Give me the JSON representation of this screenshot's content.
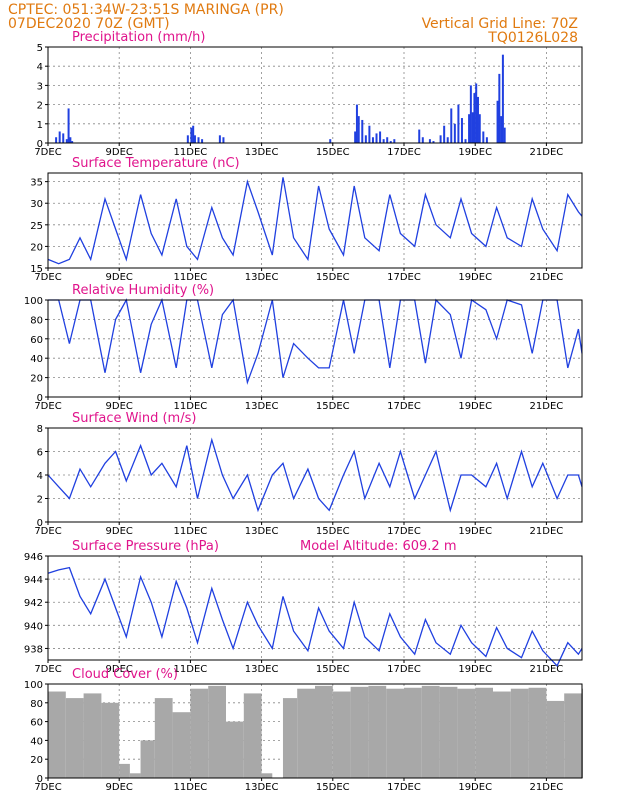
{
  "header": {
    "line1": "CPTEC:   051:34W-23:51S  MARINGA (PR)",
    "line2": "07DEC2020 70Z (GMT)",
    "right1": "Vertical Grid Line: 70Z",
    "right2": "TQ0126L028"
  },
  "colors": {
    "line": "#2040e0",
    "cloud": "#a8a8a8",
    "header": "#e07a10",
    "title": "#e0148c"
  },
  "chart_data": [
    {
      "type": "bar",
      "id": "precip",
      "title": "Precipitation (mm/h)",
      "ylim": [
        0,
        5
      ],
      "yticks": [
        0,
        1,
        2,
        3,
        4,
        5
      ],
      "xlim": [
        7,
        22
      ],
      "xticks": [
        7,
        9,
        11,
        13,
        15,
        17,
        19,
        21
      ],
      "xticklabels": [
        "7DEC",
        "9DEC",
        "11DEC",
        "13DEC",
        "15DEC",
        "17DEC",
        "19DEC",
        "21DEC"
      ],
      "grid": true,
      "x": [
        7.2,
        7.3,
        7.4,
        7.5,
        7.55,
        7.6,
        7.65,
        10.9,
        11.0,
        11.05,
        11.1,
        11.2,
        11.3,
        11.8,
        11.9,
        14.9,
        15.6,
        15.65,
        15.7,
        15.8,
        15.9,
        16.0,
        16.1,
        16.2,
        16.3,
        16.4,
        16.5,
        16.6,
        16.7,
        17.4,
        17.5,
        17.7,
        17.8,
        18.0,
        18.1,
        18.2,
        18.3,
        18.4,
        18.5,
        18.6,
        18.7,
        18.8,
        18.85,
        18.9,
        18.95,
        19.0,
        19.05,
        19.1,
        19.2,
        19.3,
        19.6,
        19.65,
        19.7,
        19.75,
        19.8
      ],
      "values": [
        0.3,
        0.6,
        0.5,
        0.2,
        1.8,
        0.3,
        0.1,
        0.4,
        0.8,
        0.9,
        0.4,
        0.3,
        0.2,
        0.4,
        0.3,
        0.2,
        0.6,
        2.0,
        1.4,
        1.2,
        0.4,
        0.9,
        0.3,
        0.5,
        0.6,
        0.2,
        0.3,
        0.1,
        0.2,
        0.7,
        0.3,
        0.2,
        0.1,
        0.4,
        0.9,
        0.3,
        1.8,
        1.0,
        2.0,
        1.3,
        0.2,
        1.5,
        3.0,
        1.6,
        2.6,
        3.1,
        2.4,
        1.5,
        0.6,
        0.3,
        2.2,
        3.6,
        1.4,
        4.6,
        0.8
      ]
    },
    {
      "type": "line",
      "id": "temp",
      "title": "Surface Temperature (nC)",
      "ylim": [
        15,
        37
      ],
      "yticks": [
        15,
        20,
        25,
        30,
        35
      ],
      "xlim": [
        7,
        22
      ],
      "xticks": [
        7,
        9,
        11,
        13,
        15,
        17,
        19,
        21
      ],
      "xticklabels": [
        "7DEC",
        "9DEC",
        "11DEC",
        "13DEC",
        "15DEC",
        "17DEC",
        "19DEC",
        "21DEC"
      ],
      "grid": true,
      "x": [
        7.0,
        7.3,
        7.6,
        7.9,
        8.2,
        8.6,
        8.9,
        9.2,
        9.6,
        9.9,
        10.2,
        10.6,
        10.9,
        11.2,
        11.6,
        11.9,
        12.2,
        12.6,
        12.9,
        13.3,
        13.6,
        13.9,
        14.3,
        14.6,
        14.9,
        15.3,
        15.6,
        15.9,
        16.3,
        16.6,
        16.9,
        17.3,
        17.6,
        17.9,
        18.3,
        18.6,
        18.9,
        19.3,
        19.6,
        19.9,
        20.3,
        20.6,
        20.9,
        21.3,
        21.6,
        21.9,
        22.0
      ],
      "y": [
        17,
        16,
        17,
        22,
        17,
        31,
        24,
        17,
        32,
        23,
        18,
        31,
        20,
        17,
        29,
        22,
        18,
        35,
        28,
        18,
        36,
        22,
        17,
        34,
        24,
        18,
        34,
        22,
        19,
        32,
        23,
        20,
        32,
        25,
        22,
        31,
        23,
        20,
        29,
        22,
        20,
        31,
        24,
        19,
        32,
        28,
        27
      ]
    },
    {
      "type": "line",
      "id": "rh",
      "title": "Relative Humidity (%)",
      "ylim": [
        0,
        100
      ],
      "yticks": [
        0,
        20,
        40,
        60,
        80,
        100
      ],
      "xlim": [
        7,
        22
      ],
      "xticks": [
        7,
        9,
        11,
        13,
        15,
        17,
        19,
        21
      ],
      "xticklabels": [
        "7DEC",
        "9DEC",
        "11DEC",
        "13DEC",
        "15DEC",
        "17DEC",
        "19DEC",
        "21DEC"
      ],
      "grid": true,
      "x": [
        7.0,
        7.3,
        7.6,
        7.9,
        8.2,
        8.6,
        8.9,
        9.2,
        9.6,
        9.9,
        10.2,
        10.6,
        10.9,
        11.2,
        11.6,
        11.9,
        12.2,
        12.6,
        12.9,
        13.3,
        13.6,
        13.9,
        14.3,
        14.6,
        14.9,
        15.3,
        15.6,
        15.9,
        16.3,
        16.6,
        16.9,
        17.3,
        17.6,
        17.9,
        18.3,
        18.6,
        18.9,
        19.3,
        19.6,
        19.9,
        20.3,
        20.6,
        20.9,
        21.3,
        21.6,
        21.9,
        22.0
      ],
      "y": [
        100,
        100,
        55,
        100,
        100,
        25,
        80,
        100,
        25,
        75,
        100,
        30,
        100,
        100,
        30,
        85,
        100,
        15,
        45,
        100,
        20,
        55,
        40,
        30,
        30,
        100,
        45,
        100,
        100,
        30,
        100,
        100,
        35,
        100,
        85,
        40,
        100,
        90,
        60,
        100,
        95,
        45,
        100,
        100,
        30,
        70,
        45
      ]
    },
    {
      "type": "line",
      "id": "wind",
      "title": "Surface Wind (m/s)",
      "ylim": [
        0,
        8
      ],
      "yticks": [
        0,
        2,
        4,
        6,
        8
      ],
      "xlim": [
        7,
        22
      ],
      "xticks": [
        7,
        9,
        11,
        13,
        15,
        17,
        19,
        21
      ],
      "xticklabels": [
        "7DEC",
        "9DEC",
        "11DEC",
        "13DEC",
        "15DEC",
        "17DEC",
        "19DEC",
        "21DEC"
      ],
      "grid": true,
      "x": [
        7.0,
        7.3,
        7.6,
        7.9,
        8.2,
        8.6,
        8.9,
        9.2,
        9.6,
        9.9,
        10.2,
        10.6,
        10.9,
        11.2,
        11.6,
        11.9,
        12.2,
        12.6,
        12.9,
        13.3,
        13.6,
        13.9,
        14.3,
        14.6,
        14.9,
        15.3,
        15.6,
        15.9,
        16.3,
        16.6,
        16.9,
        17.3,
        17.6,
        17.9,
        18.3,
        18.6,
        18.9,
        19.3,
        19.6,
        19.9,
        20.3,
        20.6,
        20.9,
        21.3,
        21.6,
        21.9,
        22.0
      ],
      "y": [
        4,
        3,
        2,
        4.5,
        3,
        5,
        6,
        3.5,
        6.5,
        4,
        5,
        3,
        6.5,
        2,
        7,
        4,
        2,
        4,
        1,
        4,
        5,
        2,
        4.5,
        2,
        1,
        4,
        6,
        2,
        5,
        3,
        6,
        2,
        4,
        6,
        1,
        4,
        4,
        3,
        5,
        2,
        6,
        3,
        5,
        2,
        4,
        4,
        3
      ]
    },
    {
      "type": "line",
      "id": "pres",
      "title": "Surface Pressure (hPa)",
      "annotation": "Model Altitude: 609.2  m",
      "ylim": [
        937,
        946
      ],
      "yticks": [
        938,
        940,
        942,
        944,
        946
      ],
      "xlim": [
        7,
        22
      ],
      "xticks": [
        7,
        9,
        11,
        13,
        15,
        17,
        19,
        21
      ],
      "xticklabels": [
        "7DEC",
        "9DEC",
        "11DEC",
        "13DEC",
        "15DEC",
        "17DEC",
        "19DEC",
        "21DEC"
      ],
      "grid": true,
      "x": [
        7.0,
        7.3,
        7.6,
        7.9,
        8.2,
        8.6,
        8.9,
        9.2,
        9.6,
        9.9,
        10.2,
        10.6,
        10.9,
        11.2,
        11.6,
        11.9,
        12.2,
        12.6,
        12.9,
        13.3,
        13.6,
        13.9,
        14.3,
        14.6,
        14.9,
        15.3,
        15.6,
        15.9,
        16.3,
        16.6,
        16.9,
        17.3,
        17.6,
        17.9,
        18.3,
        18.6,
        18.9,
        19.3,
        19.6,
        19.9,
        20.3,
        20.6,
        20.9,
        21.3,
        21.6,
        21.9,
        22.0
      ],
      "y": [
        944.5,
        944.8,
        945.0,
        942.5,
        941.0,
        944.0,
        941.5,
        939.0,
        944.2,
        942.0,
        939.0,
        943.8,
        941.5,
        938.5,
        943.2,
        940.5,
        938.0,
        942.0,
        940.0,
        938.0,
        942.5,
        939.5,
        937.8,
        941.5,
        939.5,
        938.0,
        942.0,
        939.0,
        937.8,
        941.0,
        939.0,
        937.5,
        940.5,
        938.5,
        937.5,
        940.0,
        938.5,
        937.3,
        939.8,
        938.0,
        937.2,
        939.5,
        937.8,
        936.5,
        938.5,
        937.5,
        938.0
      ]
    },
    {
      "type": "bar",
      "id": "cloud",
      "title": "Cloud Cover (%)",
      "ylim": [
        0,
        100
      ],
      "yticks": [
        0,
        20,
        40,
        60,
        80,
        100
      ],
      "xlim": [
        7,
        22
      ],
      "xticks": [
        7,
        9,
        11,
        13,
        15,
        17,
        19,
        21
      ],
      "xticklabels": [
        "7DEC",
        "9DEC",
        "11DEC",
        "13DEC",
        "15DEC",
        "17DEC",
        "19DEC",
        "21DEC"
      ],
      "grid": true,
      "x": [
        7.0,
        7.5,
        8.0,
        8.5,
        9.0,
        9.3,
        9.6,
        10.0,
        10.5,
        11.0,
        11.5,
        12.0,
        12.5,
        13.0,
        13.3,
        13.6,
        14.0,
        14.5,
        15.0,
        15.5,
        16.0,
        16.5,
        17.0,
        17.5,
        18.0,
        18.5,
        19.0,
        19.5,
        20.0,
        20.5,
        21.0,
        21.5,
        22.0
      ],
      "values": [
        92,
        85,
        90,
        80,
        15,
        5,
        40,
        85,
        70,
        95,
        98,
        60,
        90,
        5,
        0,
        85,
        95,
        98,
        92,
        97,
        98,
        95,
        96,
        98,
        97,
        95,
        96,
        92,
        95,
        96,
        82,
        90,
        95
      ]
    }
  ]
}
